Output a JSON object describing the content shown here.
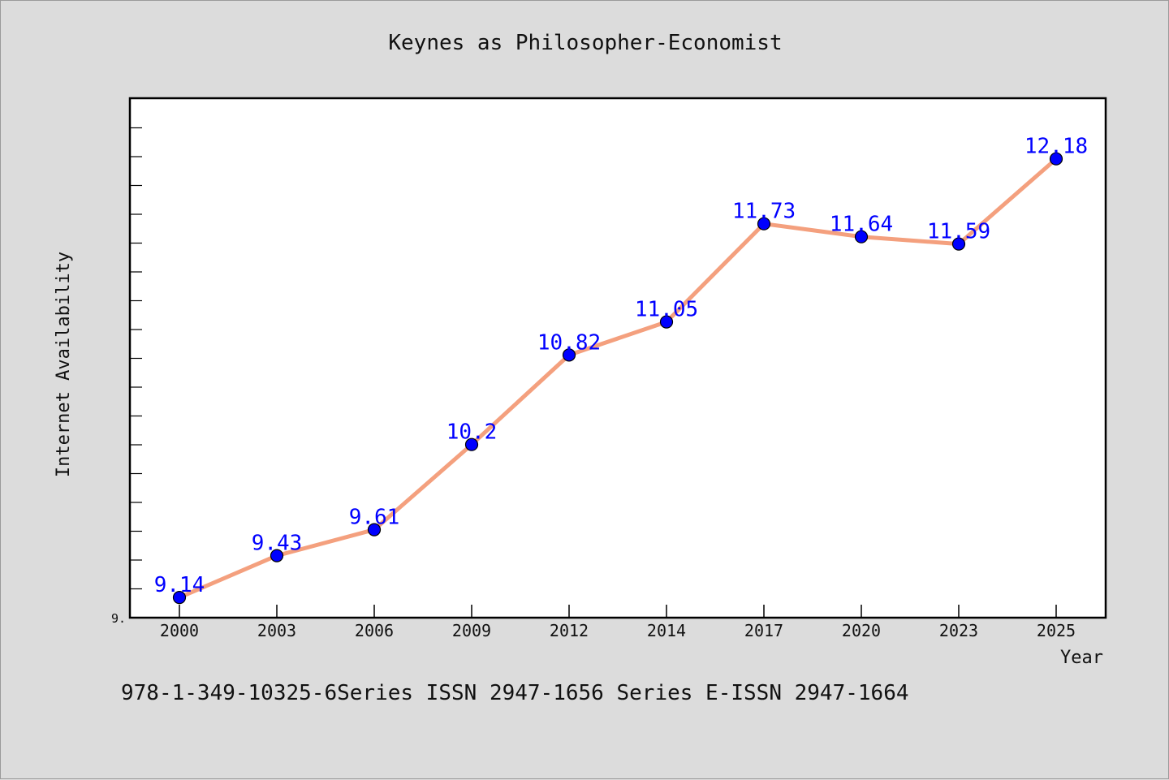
{
  "chart_data": {
    "type": "line",
    "title": "Keynes as Philosopher-Economist",
    "xlabel": "Year",
    "ylabel": "Internet Availability",
    "categories": [
      "2000",
      "2003",
      "2006",
      "2009",
      "2012",
      "2014",
      "2017",
      "2020",
      "2023",
      "2025"
    ],
    "series": [
      {
        "values": [
          9.14,
          9.43,
          9.61,
          10.2,
          10.82,
          11.05,
          11.73,
          11.64,
          11.59,
          12.18
        ],
        "data_labels": [
          "9.14",
          "9.43",
          "9.61",
          "10.2",
          "10.82",
          "11.05",
          "11.73",
          "11.64",
          "11.59",
          "12.18"
        ],
        "line_color": "#f4a07e",
        "marker_color": "#0000ff"
      }
    ],
    "y_tick_label": "9.",
    "ylim": [
      9.0,
      12.6
    ],
    "grid": false,
    "legend": "none"
  },
  "footer": {
    "text": "978-1-349-10325-6Series ISSN 2947-1656 Series E-ISSN 2947-1664"
  }
}
